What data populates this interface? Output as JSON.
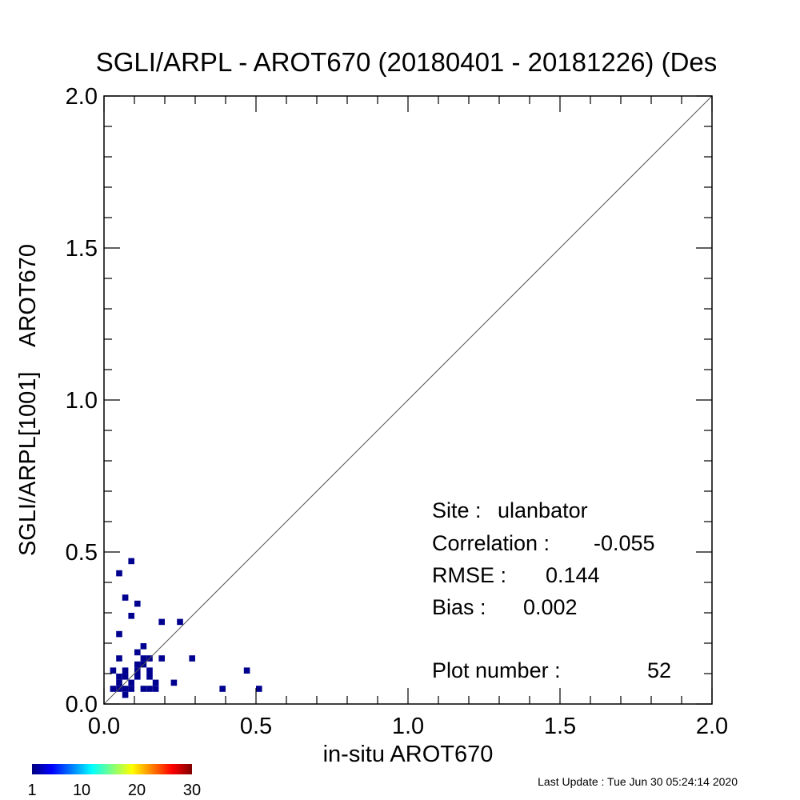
{
  "chart_data": {
    "type": "heatmap",
    "title": "SGLI/ARPL - AROT670 (20180401 - 20181226) (Des",
    "xlabel": "in-situ AROT670",
    "ylabel": "SGLI/ARPL[1001]    AROT670",
    "xlim": [
      0.0,
      2.0
    ],
    "ylim": [
      0.0,
      2.0
    ],
    "x_ticks": [
      "0.0",
      "0.5",
      "1.0",
      "1.5",
      "2.0"
    ],
    "y_ticks": [
      "0.0",
      "0.5",
      "1.0",
      "1.5",
      "2.0"
    ],
    "one_to_one_line": true,
    "grid": false,
    "cell_size": 0.02,
    "cell_color": "#00008f",
    "points": [
      {
        "x": 0.03,
        "y": 0.05
      },
      {
        "x": 0.03,
        "y": 0.11
      },
      {
        "x": 0.05,
        "y": 0.43
      },
      {
        "x": 0.05,
        "y": 0.23
      },
      {
        "x": 0.05,
        "y": 0.15
      },
      {
        "x": 0.05,
        "y": 0.09
      },
      {
        "x": 0.05,
        "y": 0.07
      },
      {
        "x": 0.05,
        "y": 0.05
      },
      {
        "x": 0.07,
        "y": 0.35
      },
      {
        "x": 0.07,
        "y": 0.11
      },
      {
        "x": 0.07,
        "y": 0.09
      },
      {
        "x": 0.07,
        "y": 0.05
      },
      {
        "x": 0.07,
        "y": 0.03
      },
      {
        "x": 0.09,
        "y": 0.47
      },
      {
        "x": 0.09,
        "y": 0.29
      },
      {
        "x": 0.09,
        "y": 0.07
      },
      {
        "x": 0.09,
        "y": 0.05
      },
      {
        "x": 0.11,
        "y": 0.33
      },
      {
        "x": 0.11,
        "y": 0.17
      },
      {
        "x": 0.11,
        "y": 0.13
      },
      {
        "x": 0.11,
        "y": 0.11
      },
      {
        "x": 0.11,
        "y": 0.09
      },
      {
        "x": 0.13,
        "y": 0.19
      },
      {
        "x": 0.13,
        "y": 0.15
      },
      {
        "x": 0.13,
        "y": 0.13
      },
      {
        "x": 0.13,
        "y": 0.05
      },
      {
        "x": 0.15,
        "y": 0.15
      },
      {
        "x": 0.15,
        "y": 0.11
      },
      {
        "x": 0.15,
        "y": 0.09
      },
      {
        "x": 0.15,
        "y": 0.05
      },
      {
        "x": 0.17,
        "y": 0.07
      },
      {
        "x": 0.17,
        "y": 0.05
      },
      {
        "x": 0.19,
        "y": 0.27
      },
      {
        "x": 0.19,
        "y": 0.15
      },
      {
        "x": 0.23,
        "y": 0.07
      },
      {
        "x": 0.25,
        "y": 0.27
      },
      {
        "x": 0.29,
        "y": 0.15
      },
      {
        "x": 0.39,
        "y": 0.05
      },
      {
        "x": 0.47,
        "y": 0.11
      },
      {
        "x": 0.51,
        "y": 0.05
      }
    ],
    "stats": {
      "site_label": "Site :",
      "site_value": "ulanbator",
      "corr_label": "Correlation :",
      "corr_value": "-0.055",
      "rmse_label": "RMSE :",
      "rmse_value": "0.144",
      "bias_label": "Bias :",
      "bias_value": "0.002",
      "n_label": "Plot number :",
      "n_value": "52"
    },
    "colorbar": {
      "labels": [
        "1",
        "10",
        "20",
        "30"
      ],
      "stops": [
        "#00007f",
        "#0000ff",
        "#007fff",
        "#00ffff",
        "#7fff7f",
        "#ffff00",
        "#ff7f00",
        "#ff0000",
        "#7f0000"
      ]
    }
  },
  "footer": {
    "last_update": "Last Update : Tue Jun 30 05:24:14 2020"
  }
}
